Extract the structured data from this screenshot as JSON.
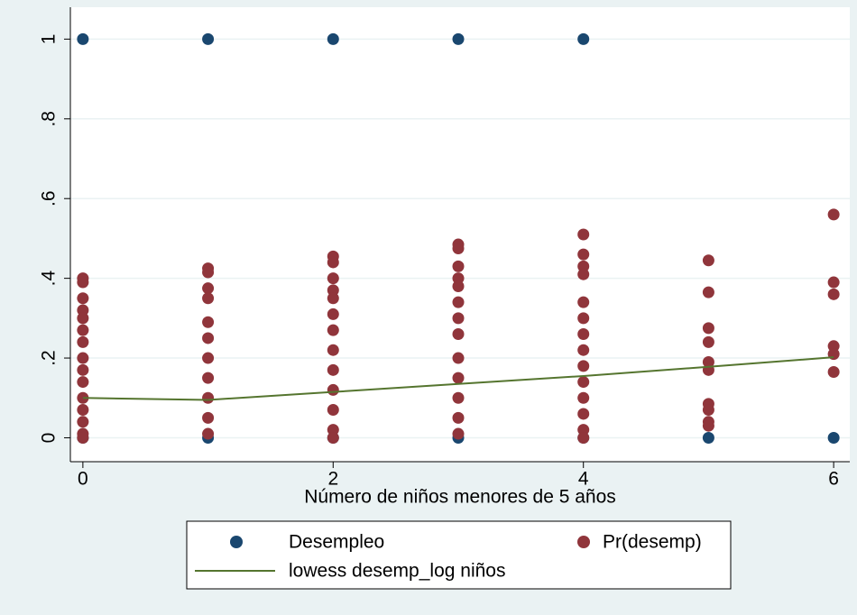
{
  "chart_data": {
    "type": "scatter",
    "xlabel": "Número de niños menores de 5 años",
    "xlim": [
      -0.1,
      6.1
    ],
    "xticks": [
      0,
      2,
      4,
      6
    ],
    "ylim": [
      -0.06,
      1.08
    ],
    "yticks": [
      0,
      {
        "value": 0.2,
        "label": ".2"
      },
      {
        "value": 0.4,
        "label": ".4"
      },
      {
        "value": 0.6,
        "label": ".6"
      },
      {
        "value": 0.8,
        "label": ".8"
      },
      1
    ],
    "grid": true,
    "series": [
      {
        "name": "Desempleo",
        "type": "scatter",
        "color": "#1a476f",
        "x": [
          0,
          1,
          2,
          3,
          4,
          0,
          1,
          2,
          3,
          4,
          5,
          6
        ],
        "values": [
          1,
          1,
          1,
          1,
          1,
          0,
          0,
          0,
          0,
          0,
          0,
          0
        ]
      },
      {
        "name": "Pr(desemp)",
        "type": "scatter",
        "color": "#90353b",
        "x": [
          0,
          0,
          0,
          0,
          0,
          0,
          0,
          0,
          0,
          0,
          0,
          0,
          0,
          0,
          0,
          1,
          1,
          1,
          1,
          1,
          1,
          1,
          1,
          1,
          1,
          1,
          2,
          2,
          2,
          2,
          2,
          2,
          2,
          2,
          2,
          2,
          2,
          2,
          2,
          3,
          3,
          3,
          3,
          3,
          3,
          3,
          3,
          3,
          3,
          3,
          3,
          3,
          4,
          4,
          4,
          4,
          4,
          4,
          4,
          4,
          4,
          4,
          4,
          4,
          4,
          4,
          5,
          5,
          5,
          5,
          5,
          5,
          5,
          5,
          5,
          5,
          6,
          6,
          6,
          6,
          6,
          6
        ],
        "values": [
          0.4,
          0.39,
          0.35,
          0.32,
          0.3,
          0.27,
          0.24,
          0.2,
          0.17,
          0.14,
          0.1,
          0.07,
          0.04,
          0.01,
          0,
          0.425,
          0.415,
          0.375,
          0.35,
          0.29,
          0.25,
          0.2,
          0.15,
          0.1,
          0.05,
          0.01,
          0.455,
          0.44,
          0.4,
          0.37,
          0.35,
          0.31,
          0.27,
          0.22,
          0.17,
          0.12,
          0.07,
          0.02,
          0,
          0.485,
          0.475,
          0.43,
          0.4,
          0.38,
          0.34,
          0.3,
          0.26,
          0.2,
          0.15,
          0.1,
          0.05,
          0.01,
          0.51,
          0.46,
          0.43,
          0.41,
          0.34,
          0.3,
          0.26,
          0.22,
          0.18,
          0.14,
          0.1,
          0.06,
          0.02,
          0,
          0.445,
          0.365,
          0.275,
          0.24,
          0.19,
          0.17,
          0.085,
          0.07,
          0.04,
          0.03,
          0.56,
          0.39,
          0.36,
          0.23,
          0.21,
          0.165
        ]
      },
      {
        "name": "lowess desemp_log niños",
        "type": "line",
        "color": "#55752f",
        "x": [
          0,
          1,
          2,
          3,
          4,
          5,
          6
        ],
        "values": [
          0.1,
          0.095,
          0.115,
          0.135,
          0.155,
          0.178,
          0.202
        ]
      }
    ]
  }
}
